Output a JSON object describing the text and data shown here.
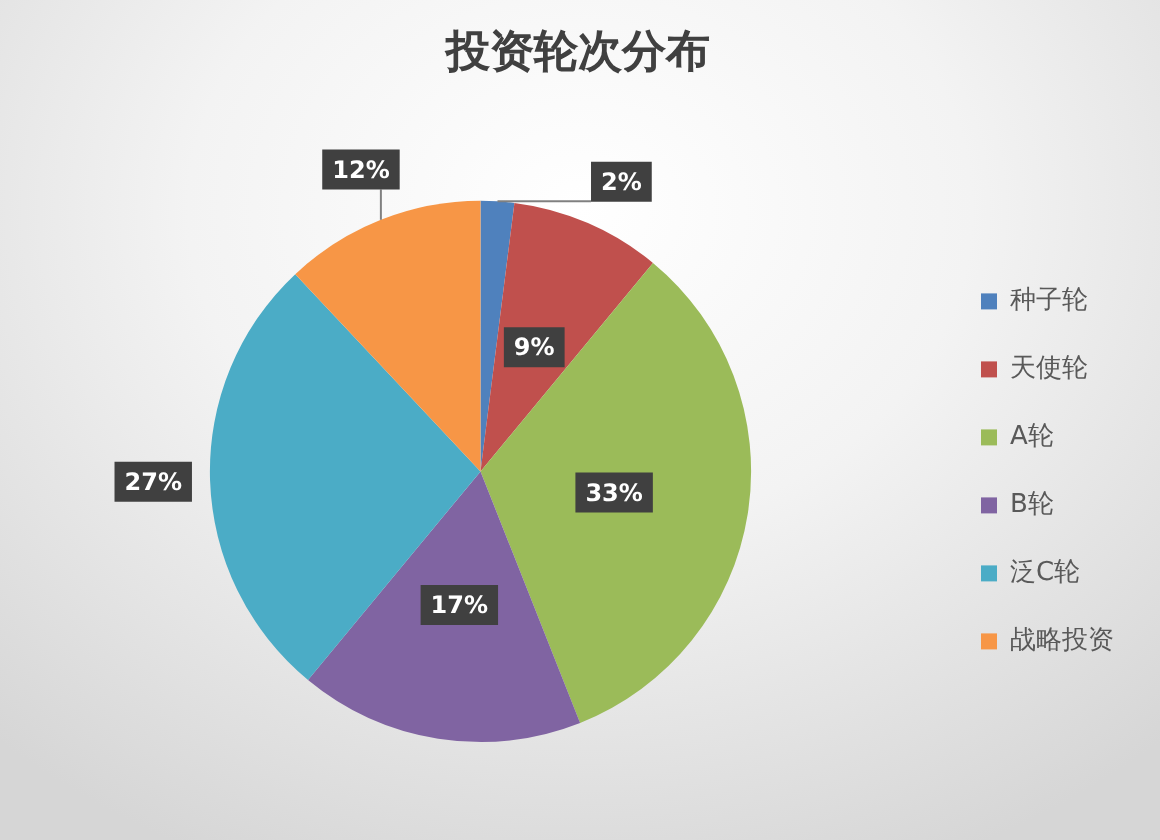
{
  "chart_data": {
    "type": "pie",
    "title": "投资轮次分布",
    "categories": [
      "种子轮",
      "天使轮",
      "A轮",
      "B轮",
      "泛C轮",
      "战略投资"
    ],
    "values": [
      2,
      9,
      33,
      17,
      27,
      12
    ],
    "colors": [
      "#4f81bd",
      "#c0504d",
      "#9bbb59",
      "#8064a2",
      "#4bacc6",
      "#f79646"
    ],
    "value_labels": [
      "2%",
      "9%",
      "33%",
      "17%",
      "27%",
      "12%"
    ],
    "legend": "right"
  }
}
